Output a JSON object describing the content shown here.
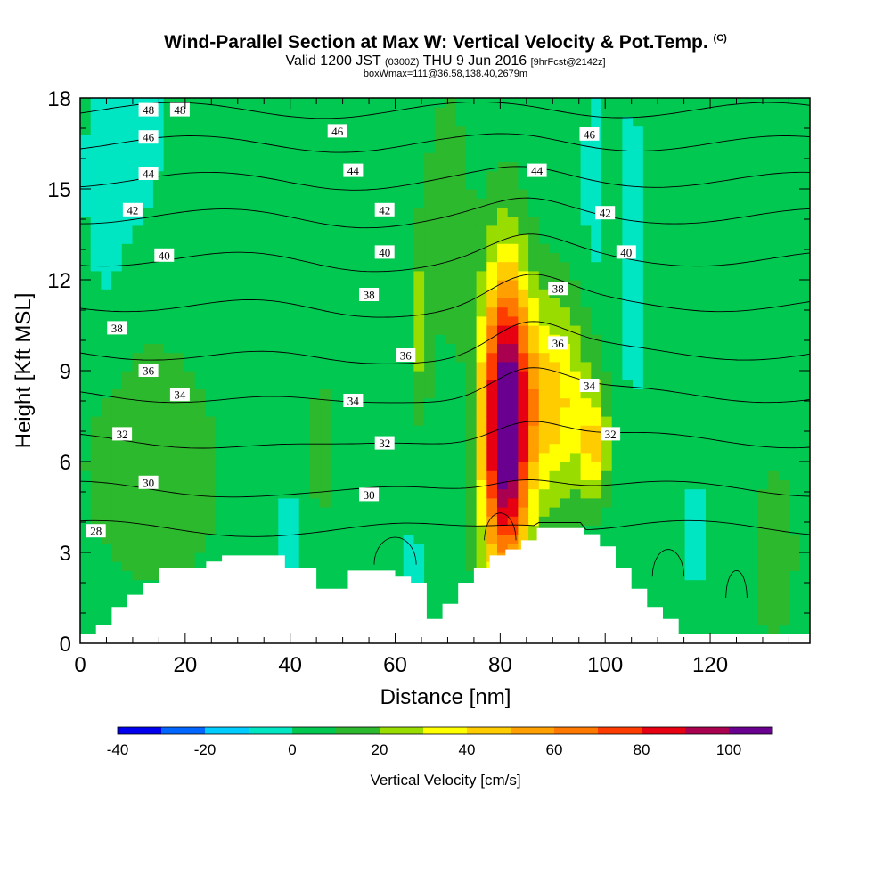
{
  "header": {
    "title_main": "Wind-Parallel Section at Max W: Vertical Velocity & Pot.Temp.",
    "title_mark": "(C)",
    "valid_prefix": "Valid 1200 JST",
    "valid_utc": "(0300Z)",
    "valid_date": "THU 9 Jun 2016",
    "forecast": "[9hrFcst@2142z]",
    "box_info": "boxWmax=111@36.58,138.40,2679m"
  },
  "chart_data": {
    "type": "heatmap",
    "xlabel": "Distance [nm]",
    "ylabel": "Height [Kft MSL]",
    "xlim": [
      0,
      139
    ],
    "ylim": [
      0,
      18
    ],
    "x_ticks": [
      0,
      20,
      40,
      60,
      80,
      100,
      120
    ],
    "y_ticks": [
      0,
      3,
      6,
      9,
      12,
      15,
      18
    ],
    "colorbar": {
      "title": "Vertical Velocity [cm/s]",
      "levels": [
        -40,
        -30,
        -20,
        -10,
        0,
        10,
        20,
        30,
        40,
        50,
        60,
        70,
        80,
        90,
        100,
        110
      ],
      "tick_values": [
        -40,
        -20,
        0,
        20,
        40,
        60,
        80,
        100
      ],
      "tick_labels": [
        "-40",
        "-20",
        "0",
        "20",
        "40",
        "60",
        "80",
        "100"
      ],
      "colors": [
        "#0000ee",
        "#0066ff",
        "#00ccff",
        "#00e6c3",
        "#00c850",
        "#2db92d",
        "#99dd00",
        "#ffff00",
        "#ffcc00",
        "#ffa000",
        "#ff7800",
        "#ff3c00",
        "#e60012",
        "#aa0050",
        "#6a0090"
      ]
    },
    "velocity_features": [
      {
        "x": 81,
        "y": 7.2,
        "peak": 111,
        "sx": 3.2,
        "sy": 3.6
      },
      {
        "x": 90,
        "y": 8.0,
        "peak": 40,
        "sx": 5,
        "sy": 2.4
      },
      {
        "x": 98,
        "y": 6.5,
        "peak": 32,
        "sx": 2,
        "sy": 1.2
      },
      {
        "x": 65,
        "y": 10.5,
        "peak": 22,
        "sx": 1.2,
        "sy": 2
      },
      {
        "x": 70,
        "y": 14,
        "peak": 15,
        "sx": 3,
        "sy": 3
      },
      {
        "x": 46,
        "y": 6.5,
        "peak": 14,
        "sx": 2,
        "sy": 1.6
      },
      {
        "x": 132,
        "y": 3,
        "peak": 16,
        "sx": 3,
        "sy": 2
      },
      {
        "x": 15,
        "y": 6,
        "peak": 10,
        "sx": 14,
        "sy": 4
      },
      {
        "x": 5,
        "y": 15,
        "peak": -12,
        "sx": 3,
        "sy": 3
      },
      {
        "x": 11,
        "y": 17,
        "peak": -12,
        "sx": 3,
        "sy": 2
      },
      {
        "x": 105,
        "y": 13,
        "peak": -12,
        "sx": 1.6,
        "sy": 3
      },
      {
        "x": 98,
        "y": 15,
        "peak": -11,
        "sx": 1.5,
        "sy": 2
      },
      {
        "x": 63,
        "y": 2,
        "peak": -14,
        "sx": 1.5,
        "sy": 1
      },
      {
        "x": 40,
        "y": 3.5,
        "peak": -14,
        "sx": 1.5,
        "sy": 1
      },
      {
        "x": 117,
        "y": 3.5,
        "peak": -12,
        "sx": 1,
        "sy": 1
      },
      {
        "x": 36,
        "y": 12,
        "peak": -3,
        "sx": 10,
        "sy": 6
      },
      {
        "x": 118,
        "y": 10,
        "peak": -3,
        "sx": 10,
        "sy": 6
      }
    ],
    "terrain": {
      "x": [
        0,
        3,
        6,
        9,
        12,
        15,
        18,
        21,
        24,
        27,
        30,
        33,
        36,
        39,
        42,
        45,
        48,
        51,
        54,
        57,
        60,
        63,
        66,
        69,
        72,
        75,
        78,
        81,
        84,
        87,
        90,
        93,
        96,
        99,
        102,
        105,
        108,
        111,
        114,
        117,
        120,
        123,
        126,
        129,
        132,
        135,
        139
      ],
      "height": [
        0.3,
        0.6,
        1.2,
        1.6,
        2.0,
        2.5,
        2.5,
        2.5,
        2.7,
        2.9,
        2.9,
        2.9,
        2.9,
        2.5,
        2.5,
        1.8,
        1.8,
        2.4,
        2.4,
        2.4,
        2.2,
        2.0,
        0.8,
        1.3,
        2.0,
        2.5,
        2.9,
        3.1,
        3.4,
        3.8,
        3.8,
        3.8,
        3.6,
        3.2,
        2.5,
        1.8,
        1.2,
        0.8,
        0.3,
        0.3,
        0.3,
        0.3,
        0.3,
        0.3,
        0.3,
        0.3,
        0.3
      ]
    },
    "theta_contours": [
      {
        "label": "28",
        "y": 3.8
      },
      {
        "label": "30",
        "y": 5.1
      },
      {
        "label": "32",
        "y": 6.7
      },
      {
        "label": "34",
        "y": 8.2
      },
      {
        "label": "36",
        "y": 9.6
      },
      {
        "label": "38",
        "y": 11.2
      },
      {
        "label": "40",
        "y": 12.7
      },
      {
        "label": "42",
        "y": 14.1
      },
      {
        "label": "44",
        "y": 15.3
      },
      {
        "label": "46",
        "y": 16.5
      },
      {
        "label": "48",
        "y": 17.6
      }
    ],
    "contour_labels": [
      {
        "text": "48",
        "x": 13,
        "y": 17.6
      },
      {
        "text": "48",
        "x": 19,
        "y": 17.6
      },
      {
        "text": "46",
        "x": 13,
        "y": 16.7
      },
      {
        "text": "46",
        "x": 49,
        "y": 16.9
      },
      {
        "text": "46",
        "x": 97,
        "y": 16.8
      },
      {
        "text": "44",
        "x": 13,
        "y": 15.5
      },
      {
        "text": "44",
        "x": 52,
        "y": 15.6
      },
      {
        "text": "44",
        "x": 87,
        "y": 15.6
      },
      {
        "text": "42",
        "x": 10,
        "y": 14.3
      },
      {
        "text": "42",
        "x": 58,
        "y": 14.3
      },
      {
        "text": "42",
        "x": 100,
        "y": 14.2
      },
      {
        "text": "40",
        "x": 16,
        "y": 12.8
      },
      {
        "text": "40",
        "x": 58,
        "y": 12.9
      },
      {
        "text": "40",
        "x": 104,
        "y": 12.9
      },
      {
        "text": "38",
        "x": 7,
        "y": 10.4
      },
      {
        "text": "38",
        "x": 55,
        "y": 11.5
      },
      {
        "text": "38",
        "x": 91,
        "y": 11.7
      },
      {
        "text": "36",
        "x": 13,
        "y": 9.0
      },
      {
        "text": "36",
        "x": 62,
        "y": 9.5
      },
      {
        "text": "36",
        "x": 91,
        "y": 9.9
      },
      {
        "text": "34",
        "x": 19,
        "y": 8.2
      },
      {
        "text": "34",
        "x": 52,
        "y": 8.0
      },
      {
        "text": "34",
        "x": 97,
        "y": 8.5
      },
      {
        "text": "32",
        "x": 8,
        "y": 6.9
      },
      {
        "text": "32",
        "x": 58,
        "y": 6.6
      },
      {
        "text": "32",
        "x": 101,
        "y": 6.9
      },
      {
        "text": "30",
        "x": 13,
        "y": 5.3
      },
      {
        "text": "30",
        "x": 55,
        "y": 4.9
      },
      {
        "text": "28",
        "x": 3,
        "y": 3.7
      }
    ]
  }
}
